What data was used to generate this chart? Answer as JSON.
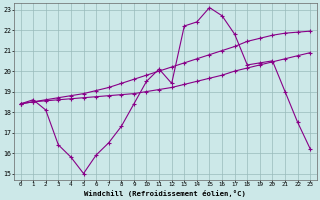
{
  "xlabel": "Windchill (Refroidissement éolien,°C)",
  "xlim": [
    -0.5,
    23.5
  ],
  "ylim": [
    14.7,
    23.3
  ],
  "yticks": [
    15,
    16,
    17,
    18,
    19,
    20,
    21,
    22,
    23
  ],
  "xticks": [
    0,
    1,
    2,
    3,
    4,
    5,
    6,
    7,
    8,
    9,
    10,
    11,
    12,
    13,
    14,
    15,
    16,
    17,
    18,
    19,
    20,
    21,
    22,
    23
  ],
  "bg_color": "#cce8e8",
  "line_color": "#880088",
  "grid_color": "#99bbbb",
  "line1_x": [
    0,
    1,
    2,
    3,
    4,
    5,
    6,
    7,
    8,
    9,
    10,
    11,
    12,
    13,
    14,
    15,
    16,
    17,
    18,
    19,
    20,
    21,
    22,
    23
  ],
  "line1_y": [
    18.4,
    18.6,
    18.1,
    16.4,
    15.8,
    15.0,
    15.9,
    16.5,
    17.3,
    18.4,
    19.5,
    20.1,
    19.4,
    22.2,
    22.4,
    23.1,
    22.7,
    21.8,
    20.3,
    20.4,
    20.5,
    19.0,
    17.5,
    16.2
  ],
  "line2_x": [
    0,
    1,
    2,
    3,
    4,
    5,
    6,
    7,
    8,
    9,
    10,
    11,
    12,
    13,
    14,
    15,
    16,
    17,
    18,
    19,
    20,
    21,
    22,
    23
  ],
  "line2_y": [
    18.4,
    18.5,
    18.55,
    18.6,
    18.65,
    18.7,
    18.75,
    18.8,
    18.85,
    18.9,
    19.0,
    19.1,
    19.2,
    19.35,
    19.5,
    19.65,
    19.8,
    20.0,
    20.15,
    20.3,
    20.45,
    20.6,
    20.75,
    20.9
  ],
  "line3_x": [
    0,
    1,
    2,
    3,
    4,
    5,
    6,
    7,
    8,
    9,
    10,
    11,
    12,
    13,
    14,
    15,
    16,
    17,
    18,
    19,
    20,
    21,
    22,
    23
  ],
  "line3_y": [
    18.4,
    18.5,
    18.6,
    18.7,
    18.8,
    18.9,
    19.05,
    19.2,
    19.4,
    19.6,
    19.8,
    20.0,
    20.2,
    20.4,
    20.6,
    20.8,
    21.0,
    21.2,
    21.45,
    21.6,
    21.75,
    21.85,
    21.9,
    21.95
  ]
}
